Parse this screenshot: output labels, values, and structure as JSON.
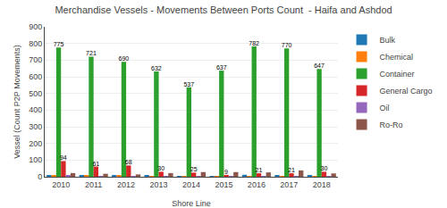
{
  "chart_data": {
    "type": "bar",
    "title": "Merchandise Vessels - Movements Between Ports Count  - Haifa and Ashdod",
    "x_label": "Shore Line",
    "y_label": "Vessel (Count P2P Movements)",
    "categories": [
      "2010",
      "2011",
      "2012",
      "2013",
      "2014",
      "2015",
      "2016",
      "2017",
      "2018"
    ],
    "series": [
      {
        "name": "Bulk",
        "values": [
          10,
          8,
          8,
          6,
          5,
          5,
          12,
          8,
          6
        ]
      },
      {
        "name": "Chemical",
        "values": [
          8,
          6,
          6,
          4,
          3,
          2,
          4,
          4,
          4
        ]
      },
      {
        "name": "Container",
        "values": [
          775,
          721,
          690,
          632,
          537,
          637,
          782,
          770,
          647
        ],
        "data_labels": true
      },
      {
        "name": "General Cargo",
        "values": [
          94,
          61,
          68,
          30,
          25,
          9,
          21,
          21,
          30
        ],
        "data_labels": true
      },
      {
        "name": "Oil",
        "values": [
          6,
          4,
          4,
          3,
          2,
          2,
          3,
          3,
          3
        ]
      },
      {
        "name": "Ro-Ro",
        "values": [
          22,
          18,
          14,
          22,
          28,
          28,
          26,
          38,
          20
        ]
      }
    ],
    "ylim": [
      0,
      900
    ],
    "yticks": [
      0,
      100,
      200,
      300,
      400,
      500,
      600,
      700,
      800,
      900
    ],
    "grid": true,
    "legend": "right"
  }
}
